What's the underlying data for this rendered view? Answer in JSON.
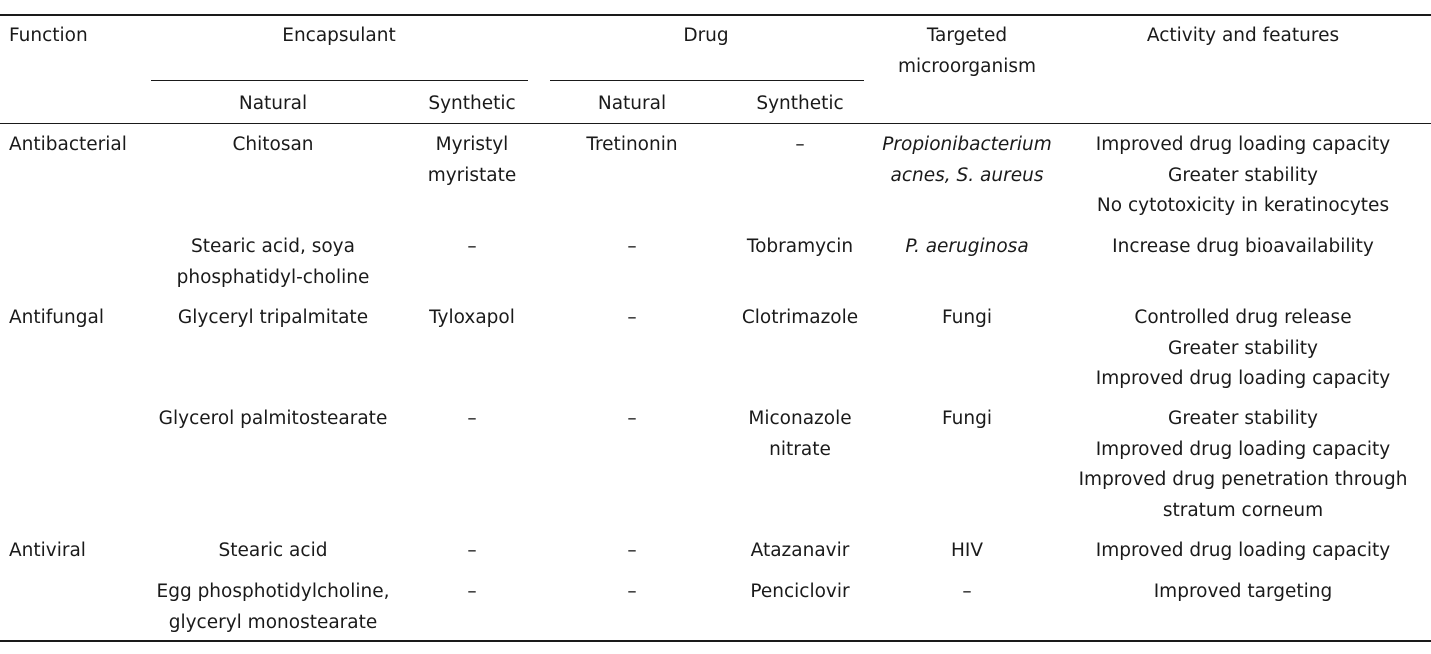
{
  "headers": {
    "function": "Function",
    "encapsulant": "Encapsulant",
    "drug": "Drug",
    "targeted": [
      "Targeted",
      "microorganism"
    ],
    "activity": "Activity and features",
    "enc_natural": "Natural",
    "enc_synthetic": "Synthetic",
    "drug_natural": "Natural",
    "drug_synthetic": "Synthetic"
  },
  "rows": [
    {
      "function": "Antibacterial",
      "enc_natural": [
        "Chitosan"
      ],
      "enc_synthetic": [
        "Myristyl",
        "myristate"
      ],
      "drug_natural": [
        "Tretinonin"
      ],
      "drug_synthetic": [
        "–"
      ],
      "target": [
        "Propionibacterium",
        "acnes, S. aureus"
      ],
      "activity": [
        "Improved drug loading capacity",
        "Greater stability",
        "No cytotoxicity in keratinocytes"
      ]
    },
    {
      "function": "",
      "enc_natural": [
        "Stearic acid, soya",
        "phosphatidyl-choline"
      ],
      "enc_synthetic": [
        "–"
      ],
      "drug_natural": [
        "–"
      ],
      "drug_synthetic": [
        "Tobramycin"
      ],
      "target": [
        "P. aeruginosa"
      ],
      "activity": [
        "Increase drug bioavailability"
      ]
    },
    {
      "function": "Antifungal",
      "enc_natural": [
        "Glyceryl tripalmitate"
      ],
      "enc_synthetic": [
        "Tyloxapol"
      ],
      "drug_natural": [
        "–"
      ],
      "drug_synthetic": [
        "Clotrimazole"
      ],
      "target": [
        "Fungi"
      ],
      "activity": [
        "Controlled drug release",
        "Greater stability",
        "Improved drug loading capacity"
      ]
    },
    {
      "function": "",
      "enc_natural": [
        "Glycerol palmitostearate"
      ],
      "enc_synthetic": [
        "–"
      ],
      "drug_natural": [
        "–"
      ],
      "drug_synthetic": [
        "Miconazole",
        "nitrate"
      ],
      "target": [
        "Fungi"
      ],
      "activity": [
        "Greater stability",
        "Improved drug loading capacity",
        "Improved drug penetration through",
        "stratum corneum"
      ]
    },
    {
      "function": "Antiviral",
      "enc_natural": [
        "Stearic acid"
      ],
      "enc_synthetic": [
        "–"
      ],
      "drug_natural": [
        "–"
      ],
      "drug_synthetic": [
        "Atazanavir"
      ],
      "target": [
        "HIV"
      ],
      "activity": [
        "Improved drug loading capacity"
      ]
    },
    {
      "function": "",
      "enc_natural": [
        "Egg phosphotidylcholine,",
        "glyceryl monostearate"
      ],
      "enc_synthetic": [
        "–"
      ],
      "drug_natural": [
        "–"
      ],
      "drug_synthetic": [
        "Penciclovir"
      ],
      "target": [
        "–"
      ],
      "activity": [
        "Improved targeting"
      ]
    }
  ]
}
